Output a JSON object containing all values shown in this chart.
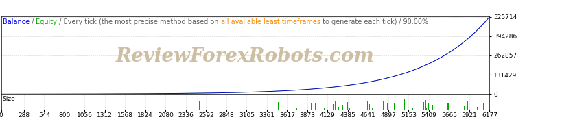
{
  "title_parts": [
    {
      "text": "Balance",
      "color": "#0000FF"
    },
    {
      "text": " / ",
      "color": "#606060"
    },
    {
      "text": "Equity",
      "color": "#00AA00"
    },
    {
      "text": " / Every tick (the most precise method based on ",
      "color": "#606060"
    },
    {
      "text": "all available least timeframes",
      "color": "#FF8C00"
    },
    {
      "text": " to generate each tick)",
      "color": "#606060"
    },
    {
      "text": " / 90.00%",
      "color": "#606060"
    }
  ],
  "x_min": 0,
  "x_max": 6177,
  "y_min": 0,
  "y_max": 525714,
  "y_ticks": [
    0,
    131429,
    262857,
    394286,
    525714
  ],
  "x_ticks": [
    0,
    288,
    544,
    800,
    1056,
    1312,
    1568,
    1824,
    2080,
    2336,
    2592,
    2848,
    3105,
    3361,
    3617,
    3873,
    4129,
    4385,
    4641,
    4897,
    5153,
    5409,
    5665,
    5921,
    6177
  ],
  "background_color": "#FFFFFF",
  "plot_bg_color": "#FFFFFF",
  "grid_color": "#D0D0D0",
  "balance_color": "#0000CC",
  "equity_color": "#00BB00",
  "size_label": "Size",
  "size_bar_color": "#00AA00",
  "watermark_text": "ReviewForexRobots.com",
  "watermark_color": "#C8B89A",
  "border_color": "#000000",
  "title_fontsize": 7,
  "tick_fontsize": 6.5,
  "ytick_color": "#000000"
}
